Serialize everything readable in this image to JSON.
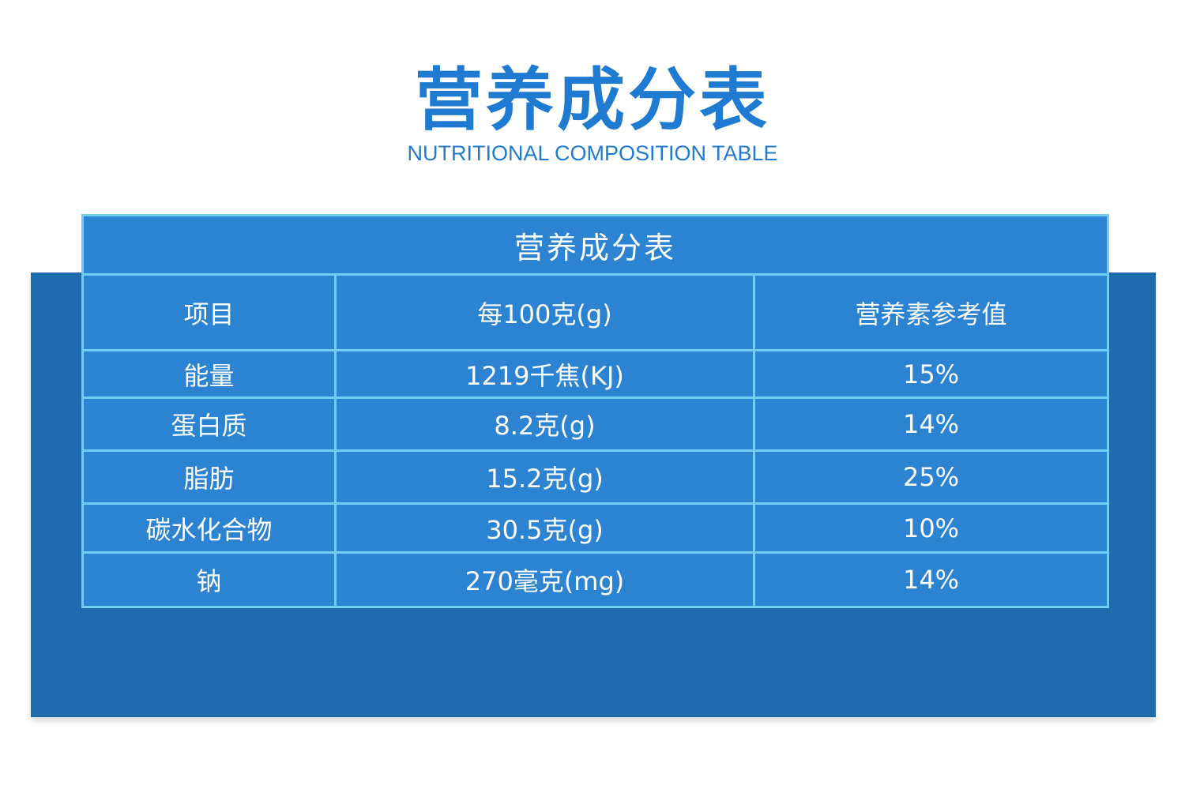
{
  "header": {
    "title": "营养成分表",
    "subtitle": "NUTRITIONAL COMPOSITION TABLE"
  },
  "table": {
    "caption": "营养成分表",
    "columns": [
      "项目",
      "每100克(g)",
      "营养素参考值"
    ],
    "rows": [
      [
        "能量",
        "1219千焦(KJ)",
        "15%"
      ],
      [
        "蛋白质",
        "8.2克(g)",
        "14%"
      ],
      [
        "脂肪",
        "15.2克(g)",
        "25%"
      ],
      [
        "碳水化合物",
        "30.5克(g)",
        "10%"
      ],
      [
        "钠",
        "270毫克(mg)",
        "14%"
      ]
    ]
  }
}
